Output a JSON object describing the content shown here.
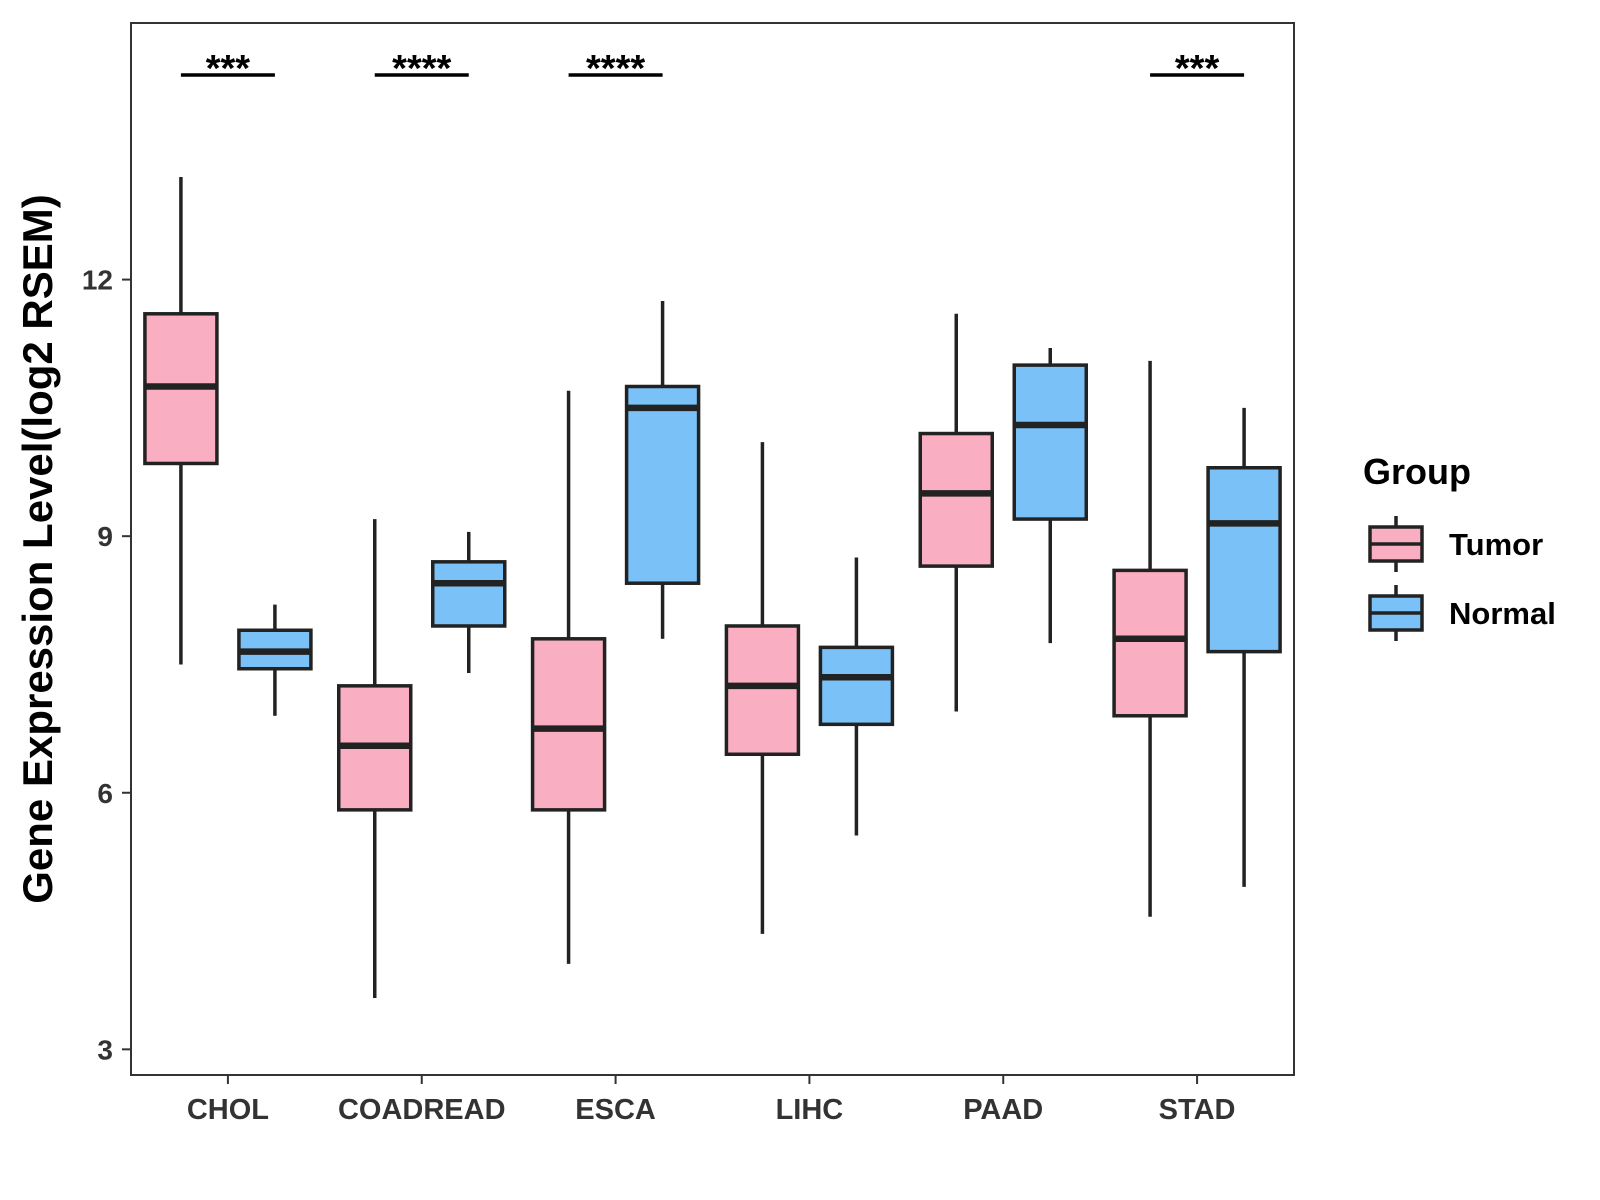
{
  "chart_data": {
    "type": "box",
    "title": "",
    "xlabel": "",
    "ylabel": "Gene Expression Level(log2 RSEM)",
    "ylim": [
      2.7,
      15.0
    ],
    "yticks": [
      3,
      6,
      9,
      12
    ],
    "categories": [
      "CHOL",
      "COADREAD",
      "ESCA",
      "LIHC",
      "PAAD",
      "STAD"
    ],
    "series": [
      {
        "name": "Tumor",
        "color": "#F9AFC1",
        "boxes": [
          {
            "min": 7.5,
            "q1": 9.85,
            "median": 10.75,
            "q3": 11.6,
            "max": 13.2
          },
          {
            "min": 3.6,
            "q1": 5.8,
            "median": 6.55,
            "q3": 7.25,
            "max": 9.2
          },
          {
            "min": 4.0,
            "q1": 5.8,
            "median": 6.75,
            "q3": 7.8,
            "max": 10.7
          },
          {
            "min": 4.35,
            "q1": 6.45,
            "median": 7.25,
            "q3": 7.95,
            "max": 10.1
          },
          {
            "min": 6.95,
            "q1": 8.65,
            "median": 9.5,
            "q3": 10.2,
            "max": 11.6
          },
          {
            "min": 4.55,
            "q1": 6.9,
            "median": 7.8,
            "q3": 8.6,
            "max": 11.05
          }
        ]
      },
      {
        "name": "Normal",
        "color": "#79C1F7",
        "boxes": [
          {
            "min": 6.9,
            "q1": 7.45,
            "median": 7.65,
            "q3": 7.9,
            "max": 8.2
          },
          {
            "min": 7.4,
            "q1": 7.95,
            "median": 8.45,
            "q3": 8.7,
            "max": 9.05
          },
          {
            "min": 7.8,
            "q1": 8.45,
            "median": 10.5,
            "q3": 10.75,
            "max": 11.75
          },
          {
            "min": 5.5,
            "q1": 6.8,
            "median": 7.35,
            "q3": 7.7,
            "max": 8.75
          },
          {
            "min": 7.75,
            "q1": 9.2,
            "median": 10.3,
            "q3": 11.0,
            "max": 11.2
          },
          {
            "min": 4.9,
            "q1": 7.65,
            "median": 9.15,
            "q3": 9.8,
            "max": 10.5
          }
        ]
      }
    ],
    "significance": [
      "***",
      "****",
      "****",
      "",
      "",
      "***"
    ],
    "legend": {
      "title": "Group",
      "position": "right"
    },
    "grid": false
  }
}
